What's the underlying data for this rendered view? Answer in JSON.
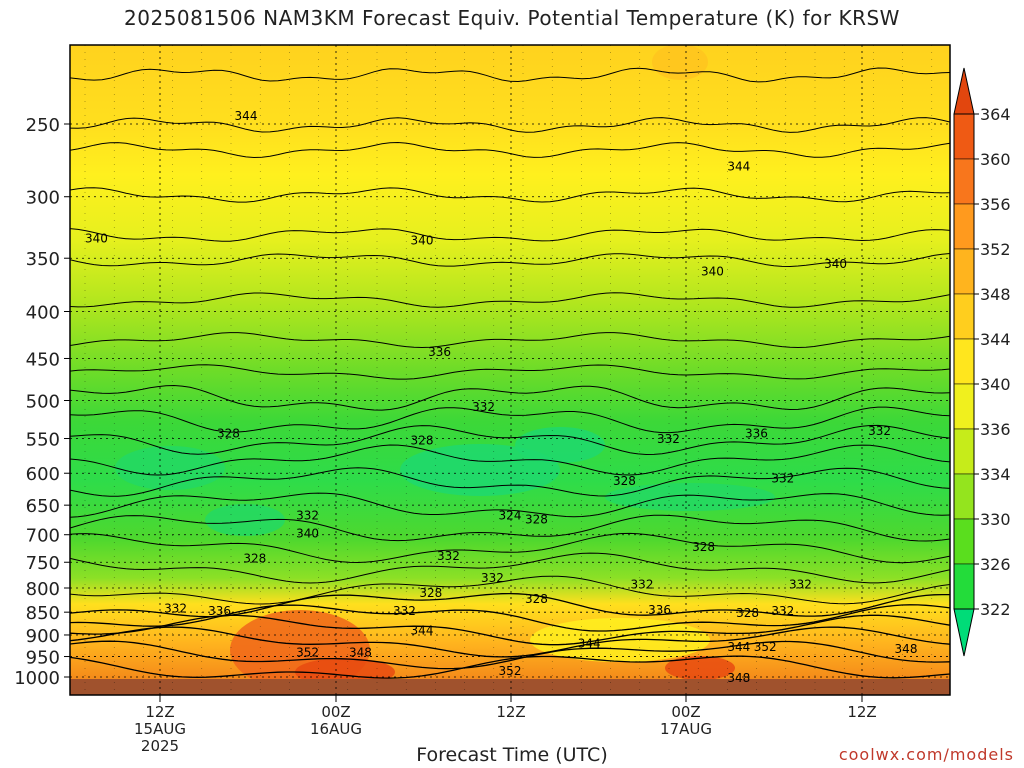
{
  "chart_data": {
    "type": "heatmap",
    "title": "2025081506 NAM3KM Forecast Equiv. Potential Temperature (K) for KRSW",
    "xlabel": "Forecast Time (UTC)",
    "ylabel": "",
    "y_scale": "log-pressure",
    "y_ticks": [
      250,
      300,
      350,
      400,
      450,
      500,
      550,
      600,
      650,
      700,
      750,
      800,
      850,
      900,
      950,
      1000
    ],
    "x_ticks": [
      {
        "line1": "12Z",
        "line2": "15AUG",
        "line3": "2025"
      },
      {
        "line1": "00Z",
        "line2": "16AUG",
        "line3": ""
      },
      {
        "line1": "12Z",
        "line2": "",
        "line3": ""
      },
      {
        "line1": "00Z",
        "line2": "17AUG",
        "line3": ""
      },
      {
        "line1": "12Z",
        "line2": "",
        "line3": ""
      }
    ],
    "colorbar_levels": [
      322,
      326,
      330,
      334,
      336,
      340,
      344,
      348,
      352,
      356,
      360,
      364
    ],
    "colorbar_colors": [
      "#00dc78",
      "#23dc3a",
      "#5ade1e",
      "#94e41e",
      "#c6ec1a",
      "#f0f01e",
      "#ffe61e",
      "#ffce1e",
      "#ffb41e",
      "#ff9a1e",
      "#f8761c",
      "#ef5a14",
      "#e2460e"
    ],
    "contour_labels": [
      {
        "value": "344",
        "t": 0.2,
        "p": 245
      },
      {
        "value": "344",
        "t": 0.76,
        "p": 278
      },
      {
        "value": "340",
        "t": 0.03,
        "p": 333
      },
      {
        "value": "340",
        "t": 0.4,
        "p": 335
      },
      {
        "value": "340",
        "t": 0.73,
        "p": 362
      },
      {
        "value": "340",
        "t": 0.87,
        "p": 355
      },
      {
        "value": "336",
        "t": 0.42,
        "p": 443
      },
      {
        "value": "332",
        "t": 0.47,
        "p": 508
      },
      {
        "value": "328",
        "t": 0.18,
        "p": 543
      },
      {
        "value": "328",
        "t": 0.4,
        "p": 553
      },
      {
        "value": "332",
        "t": 0.68,
        "p": 551
      },
      {
        "value": "336",
        "t": 0.78,
        "p": 543
      },
      {
        "value": "332",
        "t": 0.92,
        "p": 540
      },
      {
        "value": "328",
        "t": 0.63,
        "p": 612
      },
      {
        "value": "332",
        "t": 0.81,
        "p": 608
      },
      {
        "value": "332",
        "t": 0.27,
        "p": 667
      },
      {
        "value": "340",
        "t": 0.27,
        "p": 698
      },
      {
        "value": "324",
        "t": 0.5,
        "p": 667
      },
      {
        "value": "328",
        "t": 0.53,
        "p": 674
      },
      {
        "value": "328",
        "t": 0.72,
        "p": 722
      },
      {
        "value": "328",
        "t": 0.21,
        "p": 743
      },
      {
        "value": "332",
        "t": 0.43,
        "p": 738
      },
      {
        "value": "332",
        "t": 0.48,
        "p": 780
      },
      {
        "value": "332",
        "t": 0.65,
        "p": 793
      },
      {
        "value": "332",
        "t": 0.83,
        "p": 793
      },
      {
        "value": "328",
        "t": 0.41,
        "p": 810
      },
      {
        "value": "328",
        "t": 0.53,
        "p": 822
      },
      {
        "value": "332",
        "t": 0.12,
        "p": 842
      },
      {
        "value": "336",
        "t": 0.17,
        "p": 848
      },
      {
        "value": "332",
        "t": 0.38,
        "p": 848
      },
      {
        "value": "336",
        "t": 0.67,
        "p": 845
      },
      {
        "value": "328",
        "t": 0.77,
        "p": 852
      },
      {
        "value": "332",
        "t": 0.81,
        "p": 848
      },
      {
        "value": "344",
        "t": 0.4,
        "p": 890
      },
      {
        "value": "344",
        "t": 0.59,
        "p": 920
      },
      {
        "value": "344",
        "t": 0.76,
        "p": 928
      },
      {
        "value": "352",
        "t": 0.79,
        "p": 928
      },
      {
        "value": "352",
        "t": 0.27,
        "p": 940
      },
      {
        "value": "348",
        "t": 0.33,
        "p": 940
      },
      {
        "value": "348",
        "t": 0.95,
        "p": 932
      },
      {
        "value": "352",
        "t": 0.5,
        "p": 985
      },
      {
        "value": "348",
        "t": 0.76,
        "p": 1002
      }
    ]
  },
  "xaxis_title": "Forecast Time (UTC)",
  "watermark": "coolwx.com/models"
}
